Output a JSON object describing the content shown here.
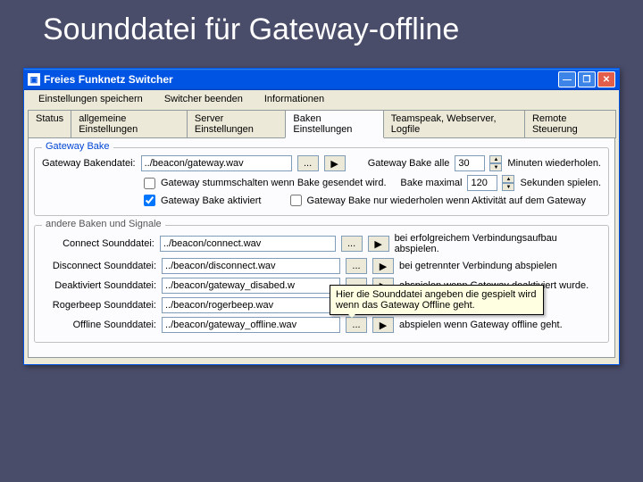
{
  "slide": {
    "title": "Sounddatei für Gateway-offline"
  },
  "window": {
    "title": "Freies Funknetz Switcher",
    "menus": [
      "Einstellungen speichern",
      "Switcher beenden",
      "Informationen"
    ],
    "close": "✕",
    "min": "—",
    "max": "❐"
  },
  "tabs": {
    "items": [
      "Status",
      "allgemeine Einstellungen",
      "Server Einstellungen",
      "Baken Einstellungen",
      "Teamspeak, Webserver, Logfile",
      "Remote Steuerung"
    ],
    "active_index": 3
  },
  "group_bake": {
    "title": "Gateway Bake",
    "file_label": "Gateway Bakendatei:",
    "file_value": "../beacon/gateway.wav",
    "browse": "...",
    "play": "▶",
    "repeat_pre": "Gateway Bake alle",
    "repeat_val": "30",
    "repeat_post": "Minuten wiederholen.",
    "mute_label": "Gateway stummschalten wenn Bake gesendet wird.",
    "max_pre": "Bake maximal",
    "max_val": "120",
    "max_post": "Sekunden spielen.",
    "activated_label": "Gateway Bake aktiviert",
    "only_label": "Gateway Bake nur wiederholen wenn Aktivität auf dem Gateway"
  },
  "group_other": {
    "title": "andere Baken und Signale",
    "browse": "...",
    "play": "▶",
    "rows": [
      {
        "label": "Connect Sounddatei:",
        "value": "../beacon/connect.wav",
        "desc": "bei erfolgreichem Verbindungsaufbau abspielen."
      },
      {
        "label": "Disconnect Sounddatei:",
        "value": "../beacon/disconnect.wav",
        "desc": "bei getrennter Verbindung abspielen"
      },
      {
        "label": "Deaktiviert Sounddatei:",
        "value": "../beacon/gateway_disabed.w",
        "desc": "abspielen wenn Gateway deaktiviert wurde."
      },
      {
        "label": "Rogerbeep Sounddatei:",
        "value": "../beacon/rogerbeep.wav",
        "desc": ""
      },
      {
        "label": "Offline Sounddatei:",
        "value": "../beacon/gateway_offline.wav",
        "desc": "abspielen wenn Gateway offline geht."
      }
    ]
  },
  "tooltip": {
    "text": "Hier die Sounddatei angeben die gespielt wird wenn das Gateway Offline geht."
  },
  "colors": {
    "bg": "#4a4d6a",
    "titlebar": "#0054e3",
    "panel": "#fcfcfe",
    "frame": "#ece9d8",
    "link": "#0046d5",
    "tooltip_bg": "#ffffe1"
  }
}
